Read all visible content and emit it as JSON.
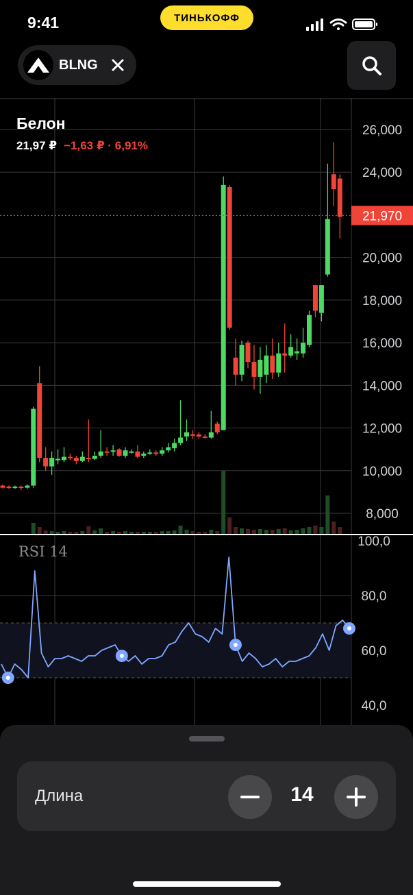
{
  "status_bar": {
    "time": "9:41",
    "carrier": "ТИНЬКОФФ"
  },
  "ticker": {
    "symbol": "BLNG"
  },
  "instrument": {
    "name": "Белон",
    "price": "21,97 ₽",
    "change": "−1,63 ₽ · 6,91%"
  },
  "chart_data": [
    {
      "type": "candlestick",
      "y_ticks": [
        "26,000",
        "24,000",
        "22,000",
        "20,000",
        "18,000",
        "16,000",
        "14,000",
        "12,000",
        "10,000",
        "8,000"
      ],
      "ylim": [
        7300,
        27000
      ],
      "current_price_label": "21,970",
      "current_price": 21970,
      "colors": {
        "up": "#4cd964",
        "down": "#f04438",
        "grid": "#3a3a3c"
      },
      "candles": [
        [
          9300,
          9200,
          9350,
          9150,
          "-"
        ],
        [
          9250,
          9200,
          9300,
          9150,
          "-"
        ],
        [
          9200,
          9250,
          9300,
          9150,
          "-"
        ],
        [
          9250,
          9200,
          9300,
          9100,
          "-"
        ],
        [
          9200,
          9300,
          9350,
          9150,
          "-"
        ],
        [
          9300,
          12900,
          13000,
          9200,
          "-"
        ],
        [
          14100,
          10600,
          14900,
          10400,
          "-"
        ],
        [
          10600,
          10200,
          11100,
          10000,
          "-"
        ],
        [
          10200,
          10600,
          10900,
          9800,
          "-"
        ],
        [
          10500,
          10550,
          11000,
          10300,
          "-"
        ],
        [
          10500,
          10650,
          11100,
          10400,
          "-"
        ],
        [
          10650,
          10600,
          10800,
          10500,
          "-"
        ],
        [
          10600,
          10450,
          10700,
          10300,
          "-"
        ],
        [
          10450,
          10650,
          10900,
          10400,
          "-"
        ],
        [
          10600,
          10550,
          12400,
          10400,
          "-"
        ],
        [
          10550,
          10700,
          10900,
          10500,
          "-"
        ],
        [
          10700,
          10900,
          11900,
          10600,
          "-"
        ],
        [
          10900,
          10850,
          11100,
          10700,
          "-"
        ],
        [
          10900,
          10950,
          11200,
          10700,
          "-"
        ],
        [
          11000,
          10700,
          11050,
          10650,
          "-"
        ],
        [
          10700,
          10950,
          11100,
          10600,
          "-"
        ],
        [
          10900,
          10900,
          11000,
          10800,
          "-"
        ],
        [
          10900,
          10650,
          11200,
          10600,
          "-"
        ],
        [
          10700,
          10800,
          10900,
          10600,
          "-"
        ],
        [
          10800,
          10850,
          11000,
          10750,
          "-"
        ],
        [
          10850,
          10800,
          10950,
          10700,
          "-"
        ],
        [
          10800,
          10950,
          11100,
          10700,
          "-"
        ],
        [
          10950,
          11100,
          11300,
          10850,
          "-"
        ],
        [
          11050,
          11300,
          11500,
          10900,
          "-"
        ],
        [
          11300,
          11550,
          13300,
          11200,
          "-"
        ],
        [
          11600,
          11800,
          12400,
          11400,
          "-"
        ],
        [
          11700,
          11650,
          11900,
          11500,
          "-"
        ],
        [
          11700,
          11600,
          11800,
          11500,
          "-"
        ],
        [
          11600,
          11550,
          11700,
          11500,
          "-"
        ],
        [
          11550,
          11800,
          12800,
          11500,
          "-"
        ],
        [
          12200,
          11800,
          12300,
          11700,
          "-"
        ],
        [
          11900,
          23400,
          23800,
          11900,
          "-"
        ],
        [
          23300,
          16700,
          23400,
          16600,
          "-"
        ],
        [
          15300,
          14500,
          16200,
          14000,
          "-"
        ],
        [
          14500,
          15900,
          16100,
          14200,
          "-"
        ],
        [
          16000,
          15100,
          16100,
          14800,
          "-"
        ],
        [
          15100,
          14400,
          15900,
          13800,
          "-"
        ],
        [
          14400,
          15200,
          15800,
          13600,
          "-"
        ],
        [
          14500,
          15400,
          15900,
          14100,
          "-"
        ],
        [
          15400,
          14600,
          16200,
          14300,
          "-"
        ],
        [
          14600,
          15500,
          16000,
          14400,
          "-"
        ],
        [
          15500,
          15400,
          16900,
          14600,
          "-"
        ],
        [
          15400,
          15800,
          16400,
          15300,
          "-"
        ],
        [
          15500,
          15600,
          16200,
          15200,
          "-"
        ],
        [
          15500,
          16000,
          16700,
          15300,
          "-"
        ],
        [
          15900,
          17300,
          17500,
          15800,
          "-"
        ],
        [
          18700,
          17500,
          18700,
          17200,
          "-"
        ],
        [
          17400,
          18700,
          18700,
          17000,
          "-"
        ],
        [
          19200,
          21800,
          24400,
          19100,
          "-"
        ],
        [
          23900,
          23200,
          25400,
          22400,
          "-"
        ],
        [
          23700,
          21900,
          23900,
          20900,
          "-"
        ]
      ],
      "volumes": [
        0,
        0,
        0,
        0,
        0,
        1.6,
        1.0,
        0.5,
        0.4,
        0.3,
        0.4,
        0.3,
        0.3,
        0.4,
        1.1,
        0.5,
        0.8,
        0.3,
        0.4,
        0.3,
        0.4,
        0.3,
        0.3,
        0.3,
        0.3,
        0.3,
        0.4,
        0.4,
        0.5,
        1.2,
        0.6,
        0.4,
        0.3,
        0.3,
        0.6,
        0.4,
        9.2,
        2.4,
        1.0,
        0.8,
        0.7,
        0.6,
        0.7,
        0.6,
        0.6,
        0.7,
        0.8,
        0.5,
        0.6,
        0.8,
        1.0,
        1.2,
        1.0,
        5.6,
        1.8,
        1.0
      ]
    },
    {
      "type": "line",
      "y_ticks": [
        "100,0",
        "80,0",
        "60,0",
        "40,0"
      ],
      "ylim": [
        33,
        100
      ],
      "band": [
        50,
        70
      ],
      "color": "#7fa7ff",
      "values": [
        55,
        50,
        55,
        53,
        50,
        89,
        59,
        54,
        57,
        57,
        58,
        57,
        56,
        58,
        58,
        60,
        61,
        62,
        58,
        56,
        58,
        55,
        57,
        57,
        58,
        62,
        63,
        67,
        70,
        66,
        65,
        63,
        68,
        66,
        94,
        62,
        56,
        59,
        57,
        54,
        55,
        57,
        54,
        56,
        56,
        57,
        58,
        61,
        66,
        60,
        69,
        71,
        68
      ],
      "markers": [
        1,
        18,
        35,
        52
      ]
    }
  ],
  "indicator": {
    "label": "RSI 14"
  },
  "settings": {
    "param_label": "Длина",
    "param_value": "14"
  }
}
